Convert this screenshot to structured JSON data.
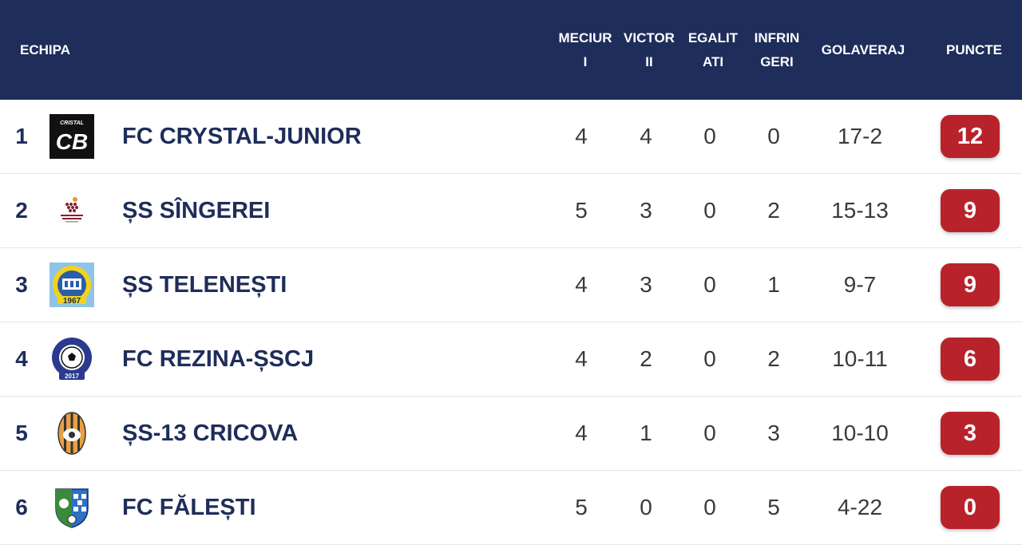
{
  "colors": {
    "header_bg": "#1e2d5a",
    "points_badge": "#b8232b",
    "team_text": "#1e2d5a"
  },
  "header": {
    "team": "ECHIPA",
    "matches": [
      "MECIUR",
      "I"
    ],
    "wins": [
      "VICTOR",
      "II"
    ],
    "draws": [
      "EGALIT",
      "ATI"
    ],
    "losses": [
      "INFRIN",
      "GERI"
    ],
    "goal_diff": "GOLAVERAJ",
    "points": "PUNCTE"
  },
  "rows": [
    {
      "rank": "1",
      "logo": "crystal-logo",
      "logo_text": "CB",
      "logo_caption": "CRISTAL",
      "team": "FC CRYSTAL-JUNIOR",
      "mp": "4",
      "w": "4",
      "d": "0",
      "l": "0",
      "gd": "17-2",
      "pts": "12"
    },
    {
      "rank": "2",
      "logo": "singerei-logo",
      "team": "ȘS SÎNGEREI",
      "mp": "5",
      "w": "3",
      "d": "0",
      "l": "2",
      "gd": "15-13",
      "pts": "9"
    },
    {
      "rank": "3",
      "logo": "telenesti-logo",
      "logo_text": "1967",
      "team": "ȘS TELENEȘTI",
      "mp": "4",
      "w": "3",
      "d": "0",
      "l": "1",
      "gd": "9-7",
      "pts": "9"
    },
    {
      "rank": "4",
      "logo": "rezina-logo",
      "logo_text": "2017",
      "team": "FC REZINA-ȘSCJ",
      "mp": "4",
      "w": "2",
      "d": "0",
      "l": "2",
      "gd": "10-11",
      "pts": "6"
    },
    {
      "rank": "5",
      "logo": "cricova-logo",
      "team": "ȘS-13 CRICOVA",
      "mp": "4",
      "w": "1",
      "d": "0",
      "l": "3",
      "gd": "10-10",
      "pts": "3"
    },
    {
      "rank": "6",
      "logo": "falesti-logo",
      "team": "FC FĂLEȘTI",
      "mp": "5",
      "w": "0",
      "d": "0",
      "l": "5",
      "gd": "4-22",
      "pts": "0"
    }
  ]
}
